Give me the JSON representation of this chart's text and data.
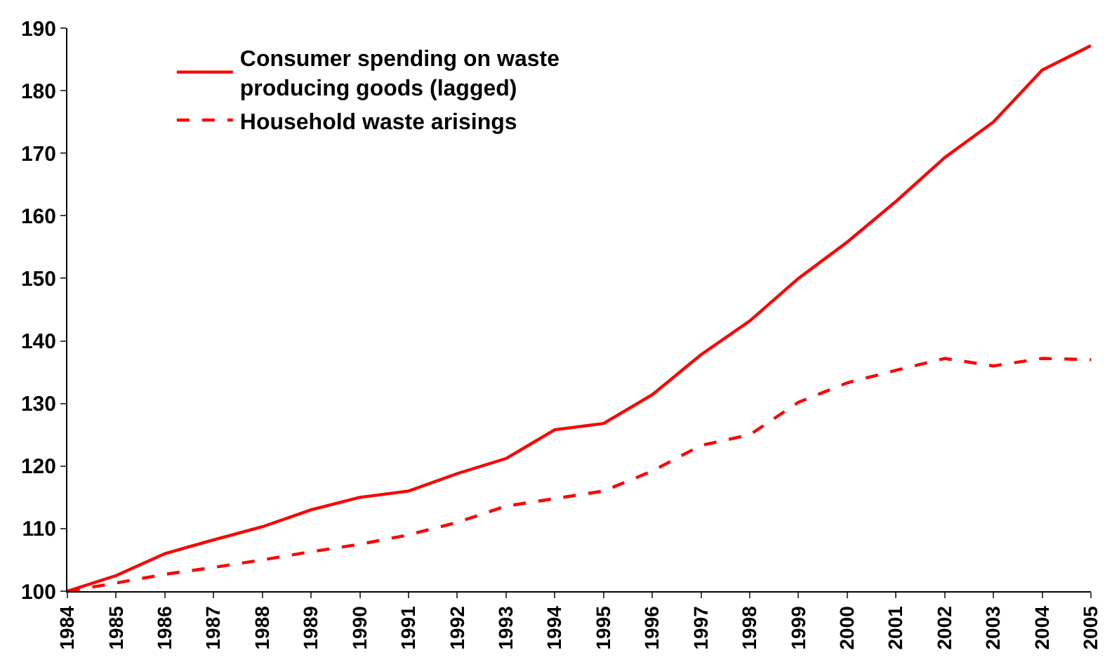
{
  "chart_data": {
    "type": "line",
    "x": [
      1984,
      1985,
      1986,
      1987,
      1988,
      1989,
      1990,
      1991,
      1992,
      1993,
      1994,
      1995,
      1996,
      1997,
      1998,
      1999,
      2000,
      2001,
      2002,
      2003,
      2004,
      2005
    ],
    "series": [
      {
        "name": "Consumer spending on waste producing goods (lagged)",
        "color": "#ff0000",
        "line_style": "solid",
        "values": [
          100,
          102.5,
          106,
          108.2,
          110.3,
          113,
          115,
          116,
          118.8,
          121.2,
          125.8,
          126.8,
          131.4,
          137.8,
          143.2,
          150,
          155.8,
          162.3,
          169.3,
          175,
          183.3,
          187.2
        ]
      },
      {
        "name": "Household waste arisings",
        "color": "#ff0000",
        "line_style": "dashed",
        "values": [
          100,
          101.3,
          102.7,
          103.8,
          105,
          106.3,
          107.5,
          109,
          111,
          113.6,
          114.8,
          116,
          119.2,
          123.3,
          125,
          130.2,
          133.3,
          135.3,
          137.2,
          136,
          137.2,
          137
        ]
      }
    ],
    "xlim": [
      1984,
      2005
    ],
    "xticks": [
      1984,
      1985,
      1986,
      1987,
      1988,
      1989,
      1990,
      1991,
      1992,
      1993,
      1994,
      1995,
      1996,
      1997,
      1998,
      1999,
      2000,
      2001,
      2002,
      2003,
      2004,
      2005
    ],
    "ylim": [
      100,
      190
    ],
    "yticks": [
      100,
      110,
      120,
      130,
      140,
      150,
      160,
      170,
      180,
      190
    ],
    "legend": "top left"
  }
}
